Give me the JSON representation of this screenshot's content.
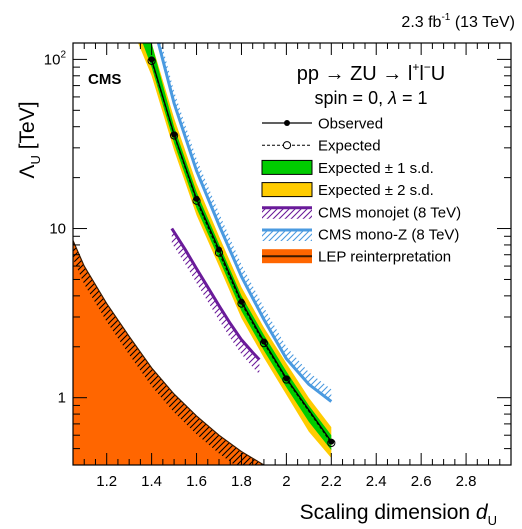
{
  "chart_data": {
    "type": "line",
    "header_label": "2.3 fb",
    "header_sup": "-1",
    "header_energy": "(13 TeV)",
    "experiment": "CMS",
    "process": {
      "text": "pp → ZU → l",
      "sup1": "+",
      "mid": "l",
      "sup2": "−",
      "end": "U"
    },
    "model_params": {
      "text": "spin = 0, ",
      "lambda_sym": "λ",
      "lambda_val": " = 1"
    },
    "xlabel": {
      "text": "Scaling dimension ",
      "var": "d",
      "sub": "U"
    },
    "ylabel": {
      "text": "Λ",
      "sub": "U",
      "unit": " [TeV]"
    },
    "xlim": [
      1.05,
      3.0
    ],
    "ylim": [
      0.4,
      125
    ],
    "yscale": "log",
    "x_tick_labels": [
      "1.2",
      "1.4",
      "1.6",
      "1.8",
      "2",
      "2.2",
      "2.4",
      "2.6",
      "2.8"
    ],
    "x_tick_values": [
      1.2,
      1.4,
      1.6,
      1.8,
      2.0,
      2.2,
      2.4,
      2.6,
      2.8
    ],
    "y_tick_labels": [
      {
        "value": 1,
        "base": "1",
        "exp": ""
      },
      {
        "value": 10,
        "base": "10",
        "exp": ""
      },
      {
        "value": 100,
        "base": "10",
        "exp": "2"
      }
    ],
    "legend": [
      {
        "key": "observed",
        "label": "Observed"
      },
      {
        "key": "expected",
        "label": "Expected"
      },
      {
        "key": "band1",
        "label": "Expected ± 1 s.d."
      },
      {
        "key": "band2",
        "label": "Expected ± 2 s.d."
      },
      {
        "key": "monojet",
        "label": "CMS monojet (8 TeV)"
      },
      {
        "key": "monoz",
        "label": "CMS mono-Z (8 TeV)"
      },
      {
        "key": "lep",
        "label": "LEP reinterpretation"
      }
    ],
    "colors": {
      "band1": "#00cc00",
      "band2": "#ffcc00",
      "monojet": "#6a1b9a",
      "monoz": "#4a9ae0",
      "lep": "#ff6600",
      "observed": "#000000"
    },
    "series": [
      {
        "name": "Observed",
        "x": [
          1.4,
          1.5,
          1.6,
          1.7,
          1.8,
          1.9,
          2.0,
          2.2
        ],
        "y": [
          100,
          36,
          15,
          7.5,
          3.7,
          2.15,
          1.3,
          0.55
        ]
      },
      {
        "name": "Expected",
        "x": [
          1.4,
          1.5,
          1.6,
          1.7,
          1.8,
          1.9,
          2.0,
          2.2
        ],
        "y": [
          98,
          35.5,
          14.6,
          7.2,
          3.6,
          2.1,
          1.28,
          0.54
        ]
      },
      {
        "name": "Expected ± 1 s.d.",
        "x": [
          1.36,
          1.4,
          1.5,
          1.6,
          1.7,
          1.8,
          1.9,
          2.0,
          2.1,
          2.2
        ],
        "low": [
          125,
          90,
          32,
          13.2,
          6.6,
          3.25,
          1.9,
          1.15,
          0.72,
          0.49
        ],
        "high": [
          125,
          125,
          40,
          16.5,
          8.1,
          4.0,
          2.35,
          1.43,
          0.9,
          0.6
        ]
      },
      {
        "name": "Expected ± 2 s.d.",
        "x": [
          1.34,
          1.4,
          1.5,
          1.6,
          1.7,
          1.8,
          1.9,
          2.0,
          2.1,
          2.2
        ],
        "low": [
          125,
          80,
          29,
          12.0,
          6.0,
          2.95,
          1.72,
          1.04,
          0.63,
          0.44
        ],
        "high": [
          125,
          125,
          45,
          18.5,
          9.0,
          4.5,
          2.6,
          1.6,
          1.0,
          0.67
        ]
      },
      {
        "name": "CMS monojet (8 TeV)",
        "x": [
          1.49,
          1.55,
          1.6,
          1.65,
          1.7,
          1.75,
          1.8,
          1.85,
          1.88
        ],
        "y": [
          10,
          7.5,
          5.8,
          4.5,
          3.5,
          2.75,
          2.2,
          1.85,
          1.68
        ]
      },
      {
        "name": "CMS mono-Z (8 TeV)",
        "x": [
          1.43,
          1.5,
          1.6,
          1.7,
          1.8,
          1.9,
          2.0,
          2.1,
          2.2
        ],
        "y": [
          125,
          55,
          22,
          10.5,
          5.2,
          2.9,
          1.7,
          1.2,
          0.95
        ]
      },
      {
        "name": "LEP reinterpretation",
        "x": [
          1.05,
          1.1,
          1.2,
          1.3,
          1.4,
          1.5,
          1.6,
          1.7,
          1.8,
          1.9
        ],
        "y": [
          8.5,
          6.0,
          3.6,
          2.3,
          1.5,
          1.05,
          0.78,
          0.6,
          0.48,
          0.4
        ]
      }
    ]
  }
}
